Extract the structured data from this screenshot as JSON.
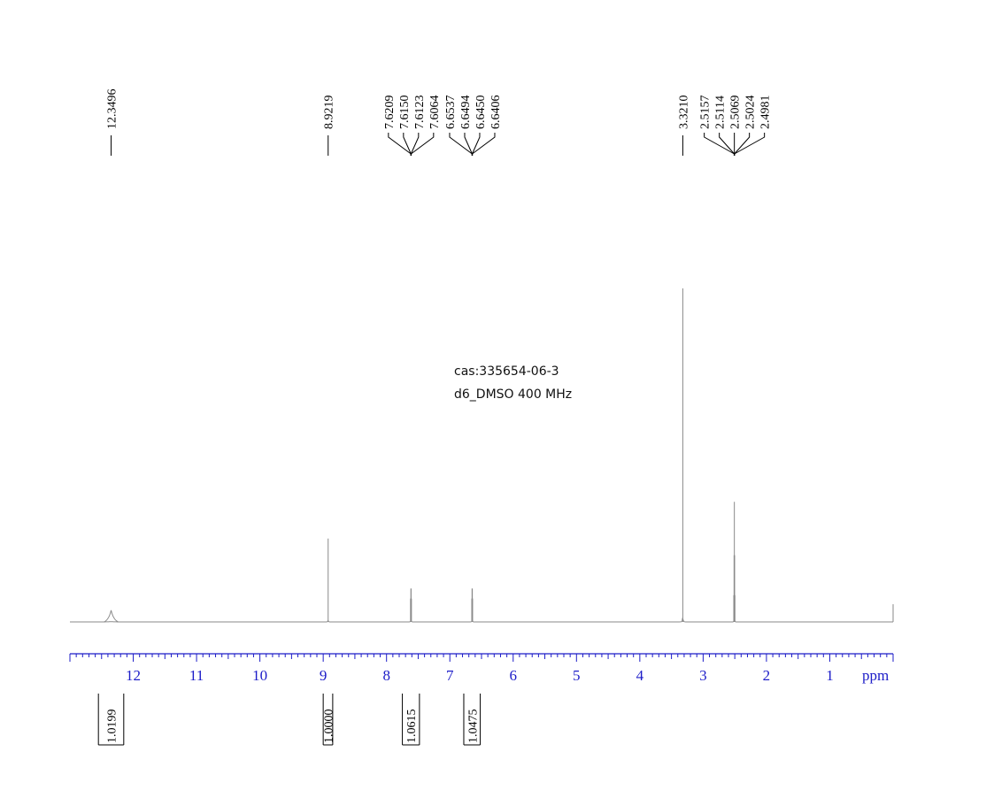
{
  "chart_data": {
    "type": "line",
    "xlabel": "ppm",
    "x_reversed": true,
    "xlim": [
      13.0,
      0.0
    ],
    "x_ticks": [
      "12",
      "11",
      "10",
      "9",
      "8",
      "7",
      "6",
      "5",
      "4",
      "3",
      "2",
      "1"
    ],
    "annotation": [
      "cas:335654-06-3",
      "d6_DMSO  400 MHz"
    ],
    "colors": {
      "spectrum": "#8a8a8a",
      "axis": "#1c1cc8",
      "labels": "#000000"
    },
    "peaks": [
      {
        "ppm": 12.3496,
        "height": 0.035,
        "width": 0.05
      },
      {
        "ppm": 8.9219,
        "height": 0.25,
        "width": 0.004
      },
      {
        "ppm": 7.6209,
        "height": 0.07,
        "width": 0.003
      },
      {
        "ppm": 7.615,
        "height": 0.1,
        "width": 0.003
      },
      {
        "ppm": 7.6123,
        "height": 0.1,
        "width": 0.003
      },
      {
        "ppm": 7.6064,
        "height": 0.07,
        "width": 0.003
      },
      {
        "ppm": 6.6537,
        "height": 0.07,
        "width": 0.003
      },
      {
        "ppm": 6.6494,
        "height": 0.1,
        "width": 0.003
      },
      {
        "ppm": 6.645,
        "height": 0.1,
        "width": 0.003
      },
      {
        "ppm": 6.6406,
        "height": 0.07,
        "width": 0.003
      },
      {
        "ppm": 3.321,
        "height": 1.0,
        "width": 0.004
      },
      {
        "ppm": 2.5157,
        "height": 0.08,
        "width": 0.002
      },
      {
        "ppm": 2.5114,
        "height": 0.2,
        "width": 0.002
      },
      {
        "ppm": 2.5069,
        "height": 0.36,
        "width": 0.002
      },
      {
        "ppm": 2.5024,
        "height": 0.2,
        "width": 0.002
      },
      {
        "ppm": 2.4981,
        "height": 0.08,
        "width": 0.002
      }
    ],
    "peak_labels": [
      {
        "label": "12.3496",
        "ppm": 12.3496,
        "group": "g1"
      },
      {
        "label": "8.9219",
        "ppm": 8.9219,
        "group": "g2"
      },
      {
        "label": "7.6209",
        "ppm": 7.6209,
        "group": "g3"
      },
      {
        "label": "7.6150",
        "ppm": 7.615,
        "group": "g3"
      },
      {
        "label": "7.6123",
        "ppm": 7.6123,
        "group": "g3"
      },
      {
        "label": "7.6064",
        "ppm": 7.6064,
        "group": "g3"
      },
      {
        "label": "6.6537",
        "ppm": 6.6537,
        "group": "g4"
      },
      {
        "label": "6.6494",
        "ppm": 6.6494,
        "group": "g4"
      },
      {
        "label": "6.6450",
        "ppm": 6.645,
        "group": "g4"
      },
      {
        "label": "6.6406",
        "ppm": 6.6406,
        "group": "g4"
      },
      {
        "label": "3.3210",
        "ppm": 3.321,
        "group": "g5"
      },
      {
        "label": "2.5157",
        "ppm": 2.5157,
        "group": "g6"
      },
      {
        "label": "2.5114",
        "ppm": 2.5114,
        "group": "g6"
      },
      {
        "label": "2.5069",
        "ppm": 2.5069,
        "group": "g6"
      },
      {
        "label": "2.5024",
        "ppm": 2.5024,
        "group": "g6"
      },
      {
        "label": "2.4981",
        "ppm": 2.4981,
        "group": "g6"
      }
    ],
    "integrals": [
      {
        "label": "1.0199",
        "from": 12.55,
        "to": 12.15
      },
      {
        "label": "1.0000",
        "from": 9.0,
        "to": 8.85
      },
      {
        "label": "1.0615",
        "from": 7.75,
        "to": 7.48
      },
      {
        "label": "1.0475",
        "from": 6.78,
        "to": 6.52
      }
    ]
  }
}
